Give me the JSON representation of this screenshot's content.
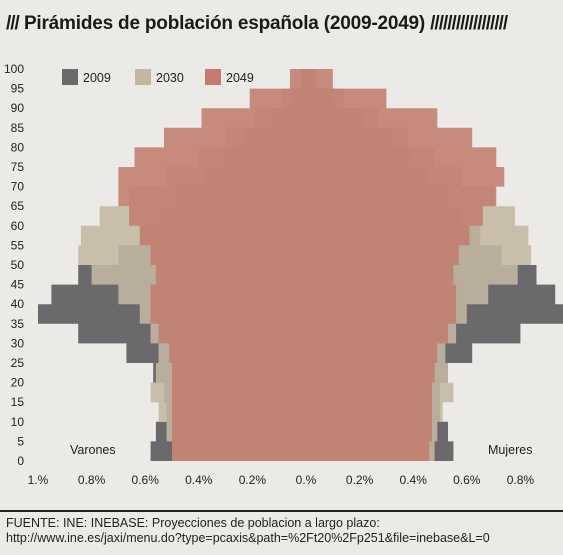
{
  "title": {
    "prefix": "///",
    "text": "Pirámides de población española (2009-2049)",
    "suffix": "//////////////////"
  },
  "source": {
    "line1": "FUENTE: INE: INEBASE: Proyecciones de poblacion a largo plazo:",
    "line2": "http://www.ine.es/jaxi/menu.do?type=pcaxis&path=%2Ft20%2Fp251&file=inebase&L=0"
  },
  "chart_data": {
    "type": "area",
    "chart_kind": "population-pyramid",
    "y_axis": {
      "min": 0,
      "max": 100,
      "ticks": [
        0,
        5,
        10,
        15,
        20,
        25,
        30,
        35,
        40,
        45,
        50,
        55,
        60,
        65,
        70,
        75,
        80,
        85,
        90,
        95,
        100
      ]
    },
    "x_axis": {
      "range_percent": [
        -1.0,
        1.0
      ],
      "tick_values": [
        -1.0,
        -0.8,
        -0.6,
        -0.4,
        -0.2,
        0,
        0.2,
        0.4,
        0.6,
        0.8
      ],
      "tick_labels": [
        "1.%",
        "0.8%",
        "0.6%",
        "0.4%",
        "0.2%",
        "0.%",
        "0.2%",
        "0.4%",
        "0.6%",
        "0.8%"
      ]
    },
    "side_labels": {
      "left": "Varones",
      "right": "Mujeres"
    },
    "legend_position": "top-left",
    "ages": [
      0,
      5,
      10,
      15,
      20,
      25,
      30,
      35,
      40,
      45,
      50,
      55,
      60,
      65,
      70,
      75,
      80,
      85,
      90,
      95,
      100
    ],
    "series": [
      {
        "name": "2009",
        "color": "#6a6a6c",
        "males": [
          0.58,
          0.56,
          0.52,
          0.53,
          0.57,
          0.67,
          0.85,
          1.0,
          0.95,
          0.85,
          0.7,
          0.62,
          0.55,
          0.48,
          0.38,
          0.31,
          0.23,
          0.12,
          0.05,
          0.01,
          0.0
        ],
        "females": [
          0.55,
          0.53,
          0.5,
          0.5,
          0.53,
          0.62,
          0.8,
          0.97,
          0.93,
          0.86,
          0.73,
          0.65,
          0.58,
          0.53,
          0.45,
          0.39,
          0.32,
          0.21,
          0.1,
          0.03,
          0.0
        ]
      },
      {
        "name": "2030",
        "color": "#c3b7a2",
        "males": [
          0.5,
          0.52,
          0.55,
          0.58,
          0.56,
          0.55,
          0.58,
          0.62,
          0.7,
          0.8,
          0.85,
          0.84,
          0.77,
          0.66,
          0.52,
          0.4,
          0.3,
          0.19,
          0.09,
          0.02,
          0.0
        ],
        "females": [
          0.48,
          0.49,
          0.51,
          0.55,
          0.53,
          0.52,
          0.56,
          0.6,
          0.68,
          0.79,
          0.84,
          0.83,
          0.78,
          0.7,
          0.58,
          0.48,
          0.38,
          0.27,
          0.14,
          0.04,
          0.0
        ]
      },
      {
        "name": "2049",
        "color": "#c27d6e",
        "males": [
          0.5,
          0.5,
          0.5,
          0.5,
          0.5,
          0.51,
          0.55,
          0.58,
          0.58,
          0.56,
          0.58,
          0.62,
          0.66,
          0.7,
          0.7,
          0.64,
          0.53,
          0.39,
          0.21,
          0.06,
          0.01
        ],
        "females": [
          0.46,
          0.47,
          0.47,
          0.47,
          0.48,
          0.49,
          0.53,
          0.56,
          0.56,
          0.55,
          0.57,
          0.61,
          0.66,
          0.71,
          0.74,
          0.71,
          0.62,
          0.49,
          0.3,
          0.1,
          0.02
        ]
      }
    ]
  }
}
